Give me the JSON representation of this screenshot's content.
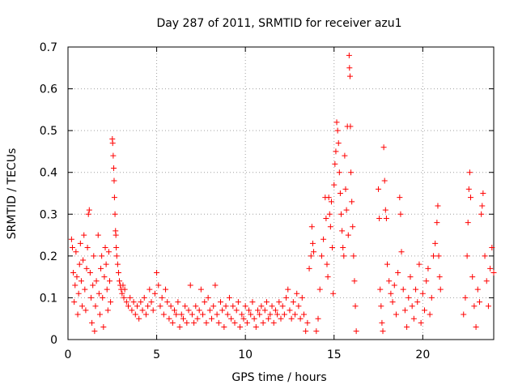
{
  "chart_data": {
    "type": "scatter",
    "title": "Day 287 of 2011, SRMTID for receiver azu1",
    "xlabel": "GPS time / hours",
    "ylabel": "SRMTID / TECUs",
    "xlim": [
      0,
      24
    ],
    "ylim": [
      0,
      0.7
    ],
    "xticks": [
      0,
      5,
      10,
      15,
      20
    ],
    "yticks": [
      0,
      0.1,
      0.2,
      0.3,
      0.4,
      0.5,
      0.6,
      0.7
    ],
    "grid": true,
    "marker": "+",
    "color": "#ff0000",
    "series": [
      {
        "name": "SRMTID",
        "points": [
          [
            0.2,
            0.24
          ],
          [
            0.25,
            0.22
          ],
          [
            0.3,
            0.16
          ],
          [
            0.35,
            0.09
          ],
          [
            0.4,
            0.13
          ],
          [
            0.45,
            0.21
          ],
          [
            0.5,
            0.15
          ],
          [
            0.55,
            0.06
          ],
          [
            0.6,
            0.11
          ],
          [
            0.65,
            0.18
          ],
          [
            0.7,
            0.23
          ],
          [
            0.75,
            0.14
          ],
          [
            0.8,
            0.08
          ],
          [
            0.85,
            0.19
          ],
          [
            0.9,
            0.25
          ],
          [
            0.95,
            0.12
          ],
          [
            1.0,
            0.07
          ],
          [
            1.05,
            0.17
          ],
          [
            1.1,
            0.22
          ],
          [
            1.15,
            0.3
          ],
          [
            1.2,
            0.31
          ],
          [
            1.25,
            0.16
          ],
          [
            1.3,
            0.1
          ],
          [
            1.35,
            0.04
          ],
          [
            1.4,
            0.13
          ],
          [
            1.45,
            0.2
          ],
          [
            1.5,
            0.02
          ],
          [
            1.55,
            0.08
          ],
          [
            1.6,
            0.14
          ],
          [
            1.7,
            0.25
          ],
          [
            1.75,
            0.11
          ],
          [
            1.8,
            0.06
          ],
          [
            1.85,
            0.17
          ],
          [
            1.9,
            0.2
          ],
          [
            1.95,
            0.1
          ],
          [
            2.0,
            0.03
          ],
          [
            2.05,
            0.15
          ],
          [
            2.1,
            0.22
          ],
          [
            2.15,
            0.18
          ],
          [
            2.2,
            0.12
          ],
          [
            2.25,
            0.07
          ],
          [
            2.3,
            0.21
          ],
          [
            2.35,
            0.14
          ],
          [
            2.4,
            0.09
          ],
          [
            2.5,
            0.48
          ],
          [
            2.52,
            0.47
          ],
          [
            2.55,
            0.44
          ],
          [
            2.58,
            0.41
          ],
          [
            2.6,
            0.38
          ],
          [
            2.62,
            0.34
          ],
          [
            2.65,
            0.3
          ],
          [
            2.68,
            0.26
          ],
          [
            2.7,
            0.25
          ],
          [
            2.72,
            0.22
          ],
          [
            2.75,
            0.2
          ],
          [
            2.8,
            0.18
          ],
          [
            2.85,
            0.16
          ],
          [
            2.9,
            0.14
          ],
          [
            2.95,
            0.13
          ],
          [
            3.0,
            0.12
          ],
          [
            3.05,
            0.11
          ],
          [
            3.1,
            0.13
          ],
          [
            3.15,
            0.1
          ],
          [
            3.2,
            0.12
          ],
          [
            3.3,
            0.09
          ],
          [
            3.4,
            0.08
          ],
          [
            3.5,
            0.1
          ],
          [
            3.6,
            0.07
          ],
          [
            3.7,
            0.09
          ],
          [
            3.8,
            0.06
          ],
          [
            3.9,
            0.08
          ],
          [
            4.0,
            0.05
          ],
          [
            4.1,
            0.09
          ],
          [
            4.2,
            0.07
          ],
          [
            4.3,
            0.1
          ],
          [
            4.4,
            0.06
          ],
          [
            4.5,
            0.08
          ],
          [
            4.6,
            0.12
          ],
          [
            4.7,
            0.09
          ],
          [
            4.8,
            0.07
          ],
          [
            4.9,
            0.11
          ],
          [
            5.0,
            0.16
          ],
          [
            5.1,
            0.13
          ],
          [
            5.2,
            0.08
          ],
          [
            5.3,
            0.1
          ],
          [
            5.4,
            0.06
          ],
          [
            5.5,
            0.12
          ],
          [
            5.6,
            0.09
          ],
          [
            5.7,
            0.05
          ],
          [
            5.8,
            0.08
          ],
          [
            5.9,
            0.04
          ],
          [
            6.0,
            0.07
          ],
          [
            6.1,
            0.06
          ],
          [
            6.2,
            0.09
          ],
          [
            6.3,
            0.03
          ],
          [
            6.4,
            0.06
          ],
          [
            6.5,
            0.05
          ],
          [
            6.6,
            0.08
          ],
          [
            6.7,
            0.04
          ],
          [
            6.8,
            0.07
          ],
          [
            6.9,
            0.13
          ],
          [
            7.0,
            0.06
          ],
          [
            7.1,
            0.04
          ],
          [
            7.2,
            0.08
          ],
          [
            7.3,
            0.05
          ],
          [
            7.4,
            0.07
          ],
          [
            7.5,
            0.12
          ],
          [
            7.6,
            0.06
          ],
          [
            7.7,
            0.09
          ],
          [
            7.8,
            0.04
          ],
          [
            7.9,
            0.1
          ],
          [
            8.0,
            0.07
          ],
          [
            8.1,
            0.05
          ],
          [
            8.2,
            0.08
          ],
          [
            8.3,
            0.13
          ],
          [
            8.4,
            0.06
          ],
          [
            8.5,
            0.04
          ],
          [
            8.6,
            0.09
          ],
          [
            8.7,
            0.07
          ],
          [
            8.8,
            0.03
          ],
          [
            8.9,
            0.08
          ],
          [
            9.0,
            0.06
          ],
          [
            9.1,
            0.1
          ],
          [
            9.2,
            0.05
          ],
          [
            9.3,
            0.08
          ],
          [
            9.4,
            0.04
          ],
          [
            9.5,
            0.07
          ],
          [
            9.6,
            0.09
          ],
          [
            9.7,
            0.03
          ],
          [
            9.8,
            0.06
          ],
          [
            9.9,
            0.05
          ],
          [
            10.0,
            0.08
          ],
          [
            10.1,
            0.04
          ],
          [
            10.2,
            0.07
          ],
          [
            10.3,
            0.06
          ],
          [
            10.4,
            0.09
          ],
          [
            10.5,
            0.05
          ],
          [
            10.6,
            0.03
          ],
          [
            10.7,
            0.07
          ],
          [
            10.8,
            0.06
          ],
          [
            10.9,
            0.08
          ],
          [
            11.0,
            0.04
          ],
          [
            11.1,
            0.07
          ],
          [
            11.2,
            0.09
          ],
          [
            11.3,
            0.05
          ],
          [
            11.4,
            0.06
          ],
          [
            11.5,
            0.08
          ],
          [
            11.6,
            0.04
          ],
          [
            11.7,
            0.07
          ],
          [
            11.8,
            0.06
          ],
          [
            11.9,
            0.09
          ],
          [
            12.0,
            0.05
          ],
          [
            12.1,
            0.08
          ],
          [
            12.2,
            0.06
          ],
          [
            12.3,
            0.1
          ],
          [
            12.4,
            0.12
          ],
          [
            12.5,
            0.07
          ],
          [
            12.6,
            0.05
          ],
          [
            12.7,
            0.09
          ],
          [
            12.8,
            0.06
          ],
          [
            12.9,
            0.11
          ],
          [
            13.0,
            0.08
          ],
          [
            13.1,
            0.05
          ],
          [
            13.2,
            0.1
          ],
          [
            13.3,
            0.06
          ],
          [
            13.4,
            0.02
          ],
          [
            13.5,
            0.04
          ],
          [
            13.6,
            0.17
          ],
          [
            13.7,
            0.2
          ],
          [
            13.75,
            0.27
          ],
          [
            13.8,
            0.23
          ],
          [
            13.85,
            0.21
          ],
          [
            14.0,
            0.02
          ],
          [
            14.1,
            0.05
          ],
          [
            14.2,
            0.12
          ],
          [
            14.3,
            0.2
          ],
          [
            14.4,
            0.24
          ],
          [
            14.5,
            0.34
          ],
          [
            14.55,
            0.29
          ],
          [
            14.6,
            0.18
          ],
          [
            14.65,
            0.15
          ],
          [
            14.7,
            0.34
          ],
          [
            14.75,
            0.3
          ],
          [
            14.8,
            0.27
          ],
          [
            14.85,
            0.33
          ],
          [
            14.9,
            0.22
          ],
          [
            14.95,
            0.11
          ],
          [
            15.0,
            0.37
          ],
          [
            15.05,
            0.42
          ],
          [
            15.1,
            0.45
          ],
          [
            15.15,
            0.52
          ],
          [
            15.2,
            0.5
          ],
          [
            15.25,
            0.47
          ],
          [
            15.3,
            0.4
          ],
          [
            15.35,
            0.35
          ],
          [
            15.4,
            0.3
          ],
          [
            15.45,
            0.26
          ],
          [
            15.5,
            0.22
          ],
          [
            15.55,
            0.2
          ],
          [
            15.6,
            0.44
          ],
          [
            15.65,
            0.36
          ],
          [
            15.7,
            0.31
          ],
          [
            15.75,
            0.51
          ],
          [
            15.8,
            0.25
          ],
          [
            15.85,
            0.68
          ],
          [
            15.87,
            0.65
          ],
          [
            15.9,
            0.63
          ],
          [
            15.92,
            0.51
          ],
          [
            15.95,
            0.4
          ],
          [
            16.0,
            0.33
          ],
          [
            16.05,
            0.27
          ],
          [
            16.1,
            0.2
          ],
          [
            16.15,
            0.14
          ],
          [
            16.2,
            0.08
          ],
          [
            16.25,
            0.02
          ],
          [
            17.5,
            0.36
          ],
          [
            17.55,
            0.29
          ],
          [
            17.6,
            0.12
          ],
          [
            17.65,
            0.08
          ],
          [
            17.7,
            0.04
          ],
          [
            17.75,
            0.02
          ],
          [
            17.8,
            0.46
          ],
          [
            17.85,
            0.38
          ],
          [
            17.9,
            0.31
          ],
          [
            17.95,
            0.29
          ],
          [
            18.0,
            0.18
          ],
          [
            18.1,
            0.14
          ],
          [
            18.2,
            0.11
          ],
          [
            18.3,
            0.09
          ],
          [
            18.4,
            0.13
          ],
          [
            18.5,
            0.06
          ],
          [
            18.6,
            0.16
          ],
          [
            18.7,
            0.34
          ],
          [
            18.75,
            0.3
          ],
          [
            18.8,
            0.21
          ],
          [
            18.9,
            0.12
          ],
          [
            19.0,
            0.07
          ],
          [
            19.1,
            0.03
          ],
          [
            19.2,
            0.1
          ],
          [
            19.3,
            0.15
          ],
          [
            19.4,
            0.08
          ],
          [
            19.5,
            0.05
          ],
          [
            19.6,
            0.12
          ],
          [
            19.7,
            0.09
          ],
          [
            19.8,
            0.18
          ],
          [
            19.9,
            0.04
          ],
          [
            20.0,
            0.11
          ],
          [
            20.1,
            0.07
          ],
          [
            20.2,
            0.14
          ],
          [
            20.3,
            0.17
          ],
          [
            20.4,
            0.06
          ],
          [
            20.5,
            0.1
          ],
          [
            20.6,
            0.2
          ],
          [
            20.7,
            0.23
          ],
          [
            20.8,
            0.28
          ],
          [
            20.85,
            0.32
          ],
          [
            20.9,
            0.2
          ],
          [
            20.95,
            0.15
          ],
          [
            21.0,
            0.12
          ],
          [
            22.3,
            0.06
          ],
          [
            22.4,
            0.1
          ],
          [
            22.5,
            0.2
          ],
          [
            22.55,
            0.28
          ],
          [
            22.6,
            0.36
          ],
          [
            22.65,
            0.4
          ],
          [
            22.7,
            0.34
          ],
          [
            22.8,
            0.15
          ],
          [
            22.9,
            0.08
          ],
          [
            23.0,
            0.03
          ],
          [
            23.1,
            0.12
          ],
          [
            23.2,
            0.09
          ],
          [
            23.3,
            0.3
          ],
          [
            23.35,
            0.32
          ],
          [
            23.4,
            0.35
          ],
          [
            23.5,
            0.2
          ],
          [
            23.6,
            0.14
          ],
          [
            23.7,
            0.08
          ],
          [
            23.8,
            0.17
          ],
          [
            23.9,
            0.22
          ],
          [
            24.0,
            0.16
          ]
        ]
      }
    ]
  }
}
